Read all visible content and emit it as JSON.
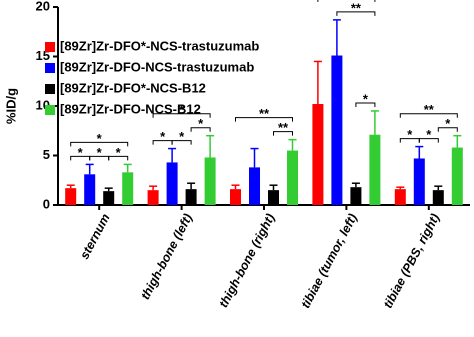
{
  "chart_data": {
    "type": "bar",
    "y_label": "%ID/g",
    "categories": [
      "sternum",
      "thigh-bone (left)",
      "thigh-bone (right)",
      "tibiae (tumor, left)",
      "tibiae (PBS, right)"
    ],
    "series": [
      {
        "name": "[89Zr]Zr-DFO*-NCS-trastuzumab",
        "color": "#ff0000",
        "values": [
          1.7,
          1.5,
          1.6,
          10.2,
          1.6
        ],
        "errors": [
          0.3,
          0.4,
          0.4,
          4.3,
          0.2
        ]
      },
      {
        "name": "[89Zr]Zr-DFO-NCS-trastuzumab",
        "color": "#0000ff",
        "values": [
          3.1,
          4.3,
          3.8,
          15.1,
          4.7
        ],
        "errors": [
          1.0,
          1.4,
          1.9,
          3.6,
          1.2
        ]
      },
      {
        "name": "[89Zr]Zr-DFO*-NCS-B12",
        "color": "#000000",
        "values": [
          1.4,
          1.6,
          1.5,
          1.8,
          1.5
        ],
        "errors": [
          0.3,
          0.6,
          0.5,
          0.4,
          0.4
        ]
      },
      {
        "name": "[89Zr]Zr-DFO-NCS-B12",
        "color": "#33cc33",
        "values": [
          3.3,
          4.8,
          5.5,
          7.1,
          5.8
        ],
        "errors": [
          0.8,
          2.2,
          1.1,
          2.4,
          1.2
        ]
      }
    ],
    "significance": [
      [
        {
          "from": 0,
          "to": 1,
          "label": "*"
        },
        {
          "from": 1,
          "to": 2,
          "label": "*"
        },
        {
          "from": 2,
          "to": 3,
          "label": "*"
        },
        {
          "from": 0,
          "to": 3,
          "label": "*"
        }
      ],
      [
        {
          "from": 0,
          "to": 1,
          "label": "*"
        },
        {
          "from": 1,
          "to": 2,
          "label": "*"
        },
        {
          "from": 2,
          "to": 3,
          "label": "*"
        },
        {
          "from": 0,
          "to": 3,
          "label": "*"
        }
      ],
      [
        {
          "from": 2,
          "to": 3,
          "label": "**"
        },
        {
          "from": 0,
          "to": 3,
          "label": "**"
        }
      ],
      [
        {
          "from": 2,
          "to": 3,
          "label": "*"
        },
        {
          "from": 1,
          "to": 3,
          "label": "**"
        },
        {
          "from": 0,
          "to": 3,
          "label": "*"
        }
      ],
      [
        {
          "from": 0,
          "to": 1,
          "label": "*"
        },
        {
          "from": 1,
          "to": 2,
          "label": "*"
        },
        {
          "from": 2,
          "to": 3,
          "label": "*"
        },
        {
          "from": 0,
          "to": 3,
          "label": "**"
        }
      ]
    ],
    "ylim": [
      0,
      20
    ],
    "yticks": [
      0,
      5,
      10,
      15,
      20
    ]
  }
}
